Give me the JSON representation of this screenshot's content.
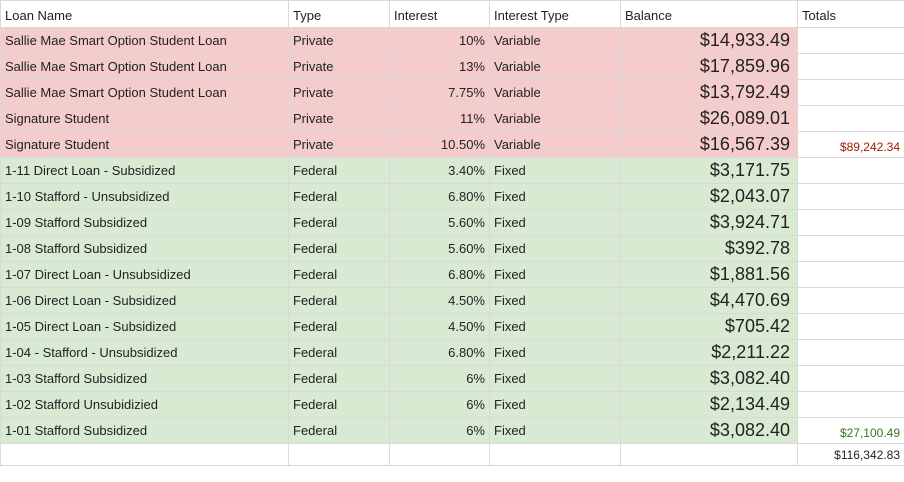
{
  "headers": {
    "loan_name": "Loan Name",
    "type": "Type",
    "interest": "Interest",
    "interest_type": "Interest Type",
    "balance": "Balance",
    "totals": "Totals"
  },
  "loans": [
    {
      "name": "Sallie Mae Smart Option Student Loan",
      "type": "Private",
      "interest": "10%",
      "interest_type": "Variable",
      "balance": "$14,933.49",
      "total": ""
    },
    {
      "name": "Sallie Mae Smart Option Student Loan",
      "type": "Private",
      "interest": "13%",
      "interest_type": "Variable",
      "balance": "$17,859.96",
      "total": ""
    },
    {
      "name": "Sallie Mae Smart Option Student Loan",
      "type": "Private",
      "interest": "7.75%",
      "interest_type": "Variable",
      "balance": "$13,792.49",
      "total": ""
    },
    {
      "name": "Signature Student",
      "type": "Private",
      "interest": "11%",
      "interest_type": "Variable",
      "balance": "$26,089.01",
      "total": ""
    },
    {
      "name": "Signature Student",
      "type": "Private",
      "interest": "10.50%",
      "interest_type": "Variable",
      "balance": "$16,567.39",
      "total": "$89,242.34"
    },
    {
      "name": "1-11 Direct Loan - Subsidized",
      "type": "Federal",
      "interest": "3.40%",
      "interest_type": "Fixed",
      "balance": "$3,171.75",
      "total": ""
    },
    {
      "name": "1-10 Stafford - Unsubsidized",
      "type": "Federal",
      "interest": "6.80%",
      "interest_type": "Fixed",
      "balance": "$2,043.07",
      "total": ""
    },
    {
      "name": "1-09 Stafford Subsidized",
      "type": "Federal",
      "interest": "5.60%",
      "interest_type": "Fixed",
      "balance": "$3,924.71",
      "total": ""
    },
    {
      "name": "1-08 Stafford Subsidized",
      "type": "Federal",
      "interest": "5.60%",
      "interest_type": "Fixed",
      "balance": "$392.78",
      "total": ""
    },
    {
      "name": "1-07 Direct Loan - Unsubsidized",
      "type": "Federal",
      "interest": "6.80%",
      "interest_type": "Fixed",
      "balance": "$1,881.56",
      "total": ""
    },
    {
      "name": "1-06 Direct Loan - Subsidized",
      "type": "Federal",
      "interest": "4.50%",
      "interest_type": "Fixed",
      "balance": "$4,470.69",
      "total": ""
    },
    {
      "name": "1-05 Direct Loan - Subsidized",
      "type": "Federal",
      "interest": "4.50%",
      "interest_type": "Fixed",
      "balance": "$705.42",
      "total": ""
    },
    {
      "name": "1-04 - Stafford - Unsubsidized",
      "type": "Federal",
      "interest": "6.80%",
      "interest_type": "Fixed",
      "balance": "$2,211.22",
      "total": ""
    },
    {
      "name": "1-03 Stafford Subsidized",
      "type": "Federal",
      "interest": "6%",
      "interest_type": "Fixed",
      "balance": "$3,082.40",
      "total": ""
    },
    {
      "name": "1-02 Stafford Unsubidizied",
      "type": "Federal",
      "interest": "6%",
      "interest_type": "Fixed",
      "balance": "$2,134.49",
      "total": ""
    },
    {
      "name": "1-01 Stafford Subsidized",
      "type": "Federal",
      "interest": "6%",
      "interest_type": "Fixed",
      "balance": "$3,082.40",
      "total": "$27,100.49"
    }
  ],
  "grand_total": "$116,342.83",
  "colors": {
    "private_fill": "#f4cccc",
    "federal_fill": "#d9ead3",
    "private_total": "#a61c00",
    "federal_total": "#38761d"
  }
}
